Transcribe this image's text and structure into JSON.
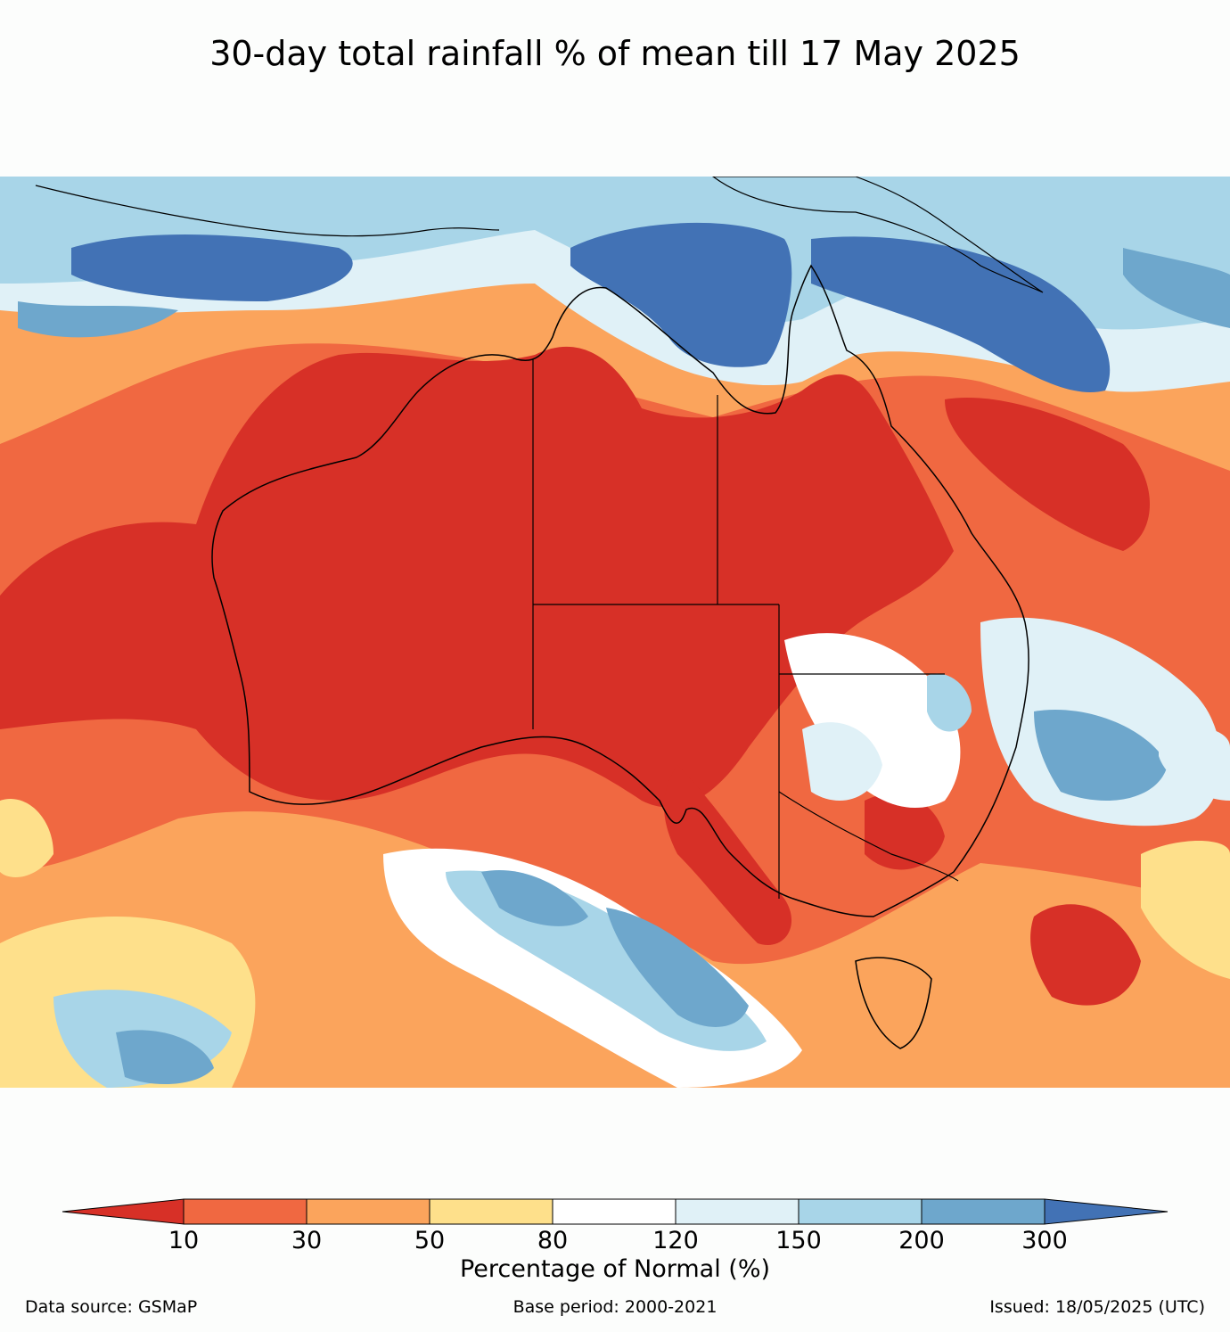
{
  "title": "30-day total rainfall % of mean till 17 May 2025",
  "colorbar": {
    "label": "Percentage of Normal (%)",
    "ticks": [
      "10",
      "30",
      "50",
      "80",
      "120",
      "150",
      "200",
      "300"
    ],
    "colors": [
      "#d73027",
      "#f06841",
      "#fba45c",
      "#fee08b",
      "#ffffff",
      "#e0f1f7",
      "#a8d5e8",
      "#6ea7cc",
      "#4272b5"
    ]
  },
  "footer": {
    "source": "Data source: GSMaP",
    "base_period": "Base period: 2000-2021",
    "issued": "Issued: 18/05/2025 (UTC)"
  }
}
